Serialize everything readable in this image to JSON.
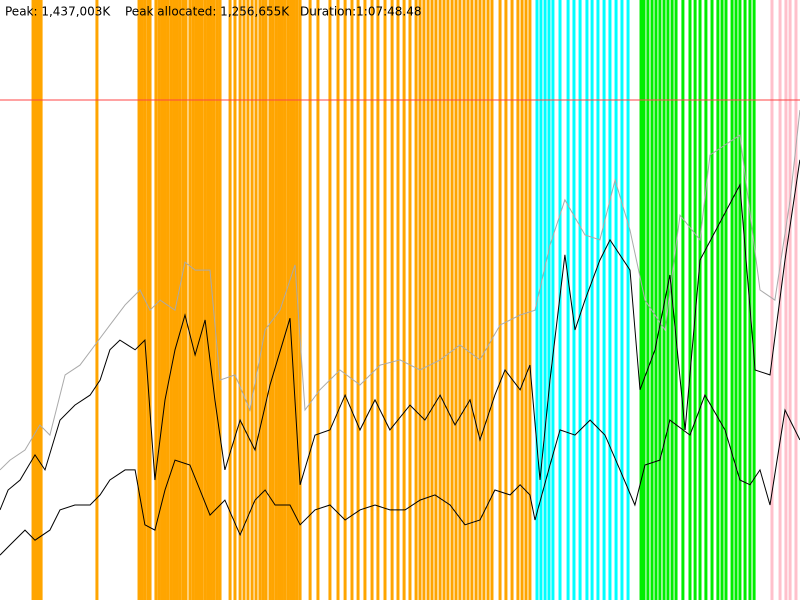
{
  "header": {
    "peak": "Peak: 1,437,003K",
    "peak_allocated": "Peak allocated: 1,256,655K",
    "duration": "Duration:1:07:48.48"
  },
  "chart_data": {
    "type": "line",
    "xlim": [
      0,
      4068.48
    ],
    "ylim": [
      0,
      1724400
    ],
    "peak_line": 1437003,
    "peak_color": "#ff4444",
    "events": [
      {
        "color": "#ffa500",
        "x": [
          168,
          178,
          188,
          198,
          209,
          493,
          707,
          722,
          737,
          753,
          763,
          793,
          809,
          824,
          839,
          854,
          870,
          885,
          900,
          915,
          931,
          946,
          966,
          982,
          997,
          1012,
          1027,
          1043,
          1058,
          1073,
          1088,
          1104,
          1119,
          1170,
          1195,
          1221,
          1241,
          1261,
          1282,
          1302,
          1322,
          1338,
          1353,
          1373,
          1388,
          1404,
          1419,
          1434,
          1449,
          1465,
          1480,
          1495,
          1510,
          1526,
          1577,
          1617,
          1678,
          1719,
          1755,
          1790,
          1821,
          1856,
          1892,
          1922,
          1958,
          1994,
          2024,
          2055,
          2085,
          2116,
          2136,
          2156,
          2177,
          2197,
          2217,
          2238,
          2258,
          2278,
          2299,
          2319,
          2339,
          2360,
          2380,
          2400,
          2421,
          2441,
          2461,
          2482,
          2502,
          2543,
          2573,
          2604,
          2634,
          2655,
          2675,
          2695
        ]
      },
      {
        "color": "#00ffff",
        "x": [
          2731,
          2751,
          2772,
          2792,
          2812,
          2848,
          2889,
          2919,
          2950,
          2985,
          3011,
          3041,
          3072,
          3102,
          3133,
          3163,
          3194
        ]
      },
      {
        "color": "#00ee00",
        "x": [
          3260,
          3275,
          3295,
          3316,
          3336,
          3356,
          3377,
          3397,
          3418,
          3438,
          3473,
          3509,
          3535,
          3560,
          3590,
          3621,
          3651,
          3672,
          3692,
          3723,
          3743,
          3763,
          3789,
          3814,
          3835
        ]
      },
      {
        "color": "#ffc0cb",
        "x": [
          3926,
          3967,
          3997,
          4018,
          4048
        ]
      }
    ],
    "series": [
      {
        "color": "#aaaaaa",
        "x": [
          0,
          51,
          127,
          203,
          254,
          331,
          407,
          483,
          559,
          636,
          712,
          763,
          814,
          890,
          941,
          992,
          1068,
          1119,
          1195,
          1271,
          1348,
          1424,
          1500,
          1551,
          1627,
          1729,
          1831,
          1933,
          2034,
          2136,
          2238,
          2339,
          2441,
          2543,
          2645,
          2721,
          2797,
          2873,
          2975,
          3051,
          3128,
          3204,
          3280,
          3382,
          3458,
          3560,
          3611,
          3763,
          3865,
          3941,
          4018,
          4068
        ],
        "values": [
          374000,
          402000,
          431000,
          503000,
          474000,
          647000,
          675000,
          733000,
          790000,
          848000,
          891000,
          833000,
          862000,
          833000,
          971000,
          948000,
          948000,
          632000,
          647000,
          546000,
          776000,
          833000,
          963000,
          546000,
          604000,
          661000,
          618000,
          675000,
          690000,
          661000,
          690000,
          733000,
          690000,
          790000,
          819000,
          833000,
          1020000,
          1150000,
          1049000,
          1035000,
          1207000,
          1063000,
          862000,
          776000,
          1106000,
          1035000,
          1279000,
          1336000,
          891000,
          862000,
          1150000,
          1408000
        ]
      },
      {
        "color": "#000000",
        "x": [
          0,
          41,
          102,
          178,
          229,
          305,
          381,
          458,
          509,
          559,
          610,
          687,
          737,
          788,
          839,
          890,
          941,
          992,
          1043,
          1093,
          1144,
          1221,
          1297,
          1373,
          1475,
          1526,
          1602,
          1678,
          1755,
          1831,
          1907,
          1983,
          2085,
          2161,
          2238,
          2314,
          2390,
          2441,
          2517,
          2568,
          2645,
          2695,
          2746,
          2797,
          2873,
          2924,
          2975,
          3051,
          3102,
          3204,
          3255,
          3331,
          3407,
          3484,
          3560,
          3763,
          3840,
          3916,
          3992,
          4068
        ],
        "values": [
          259000,
          316000,
          345000,
          417000,
          374000,
          517000,
          560000,
          589000,
          632000,
          719000,
          747000,
          719000,
          747000,
          345000,
          575000,
          719000,
          819000,
          704000,
          805000,
          575000,
          374000,
          517000,
          431000,
          618000,
          810000,
          331000,
          474000,
          489000,
          589000,
          489000,
          575000,
          489000,
          560000,
          517000,
          589000,
          503000,
          575000,
          460000,
          589000,
          661000,
          604000,
          675000,
          345000,
          632000,
          992000,
          776000,
          862000,
          977000,
          1035000,
          948000,
          604000,
          719000,
          934000,
          489000,
          977000,
          1193000,
          661000,
          647000,
          977000,
          1265000
        ]
      },
      {
        "color": "#000000",
        "x": [
          0,
          51,
          127,
          178,
          254,
          305,
          381,
          458,
          509,
          559,
          636,
          687,
          737,
          788,
          839,
          890,
          966,
          1017,
          1068,
          1144,
          1221,
          1297,
          1348,
          1399,
          1475,
          1526,
          1602,
          1678,
          1755,
          1831,
          1907,
          1983,
          2060,
          2136,
          2212,
          2289,
          2365,
          2441,
          2517,
          2594,
          2645,
          2695,
          2721,
          2797,
          2848,
          2924,
          3001,
          3077,
          3153,
          3229,
          3280,
          3356,
          3407,
          3509,
          3585,
          3687,
          3763,
          3814,
          3865,
          3916,
          3992,
          4068
        ],
        "values": [
          129000,
          158000,
          201000,
          172000,
          201000,
          259000,
          273000,
          273000,
          302000,
          345000,
          374000,
          374000,
          216000,
          201000,
          316000,
          402000,
          388000,
          316000,
          244000,
          287000,
          187000,
          287000,
          316000,
          273000,
          273000,
          216000,
          259000,
          273000,
          230000,
          259000,
          273000,
          259000,
          259000,
          287000,
          302000,
          273000,
          216000,
          230000,
          316000,
          302000,
          331000,
          302000,
          230000,
          388000,
          489000,
          474000,
          517000,
          474000,
          374000,
          273000,
          388000,
          402000,
          517000,
          474000,
          589000,
          489000,
          345000,
          331000,
          374000,
          273000,
          546000,
          460000
        ]
      }
    ]
  }
}
